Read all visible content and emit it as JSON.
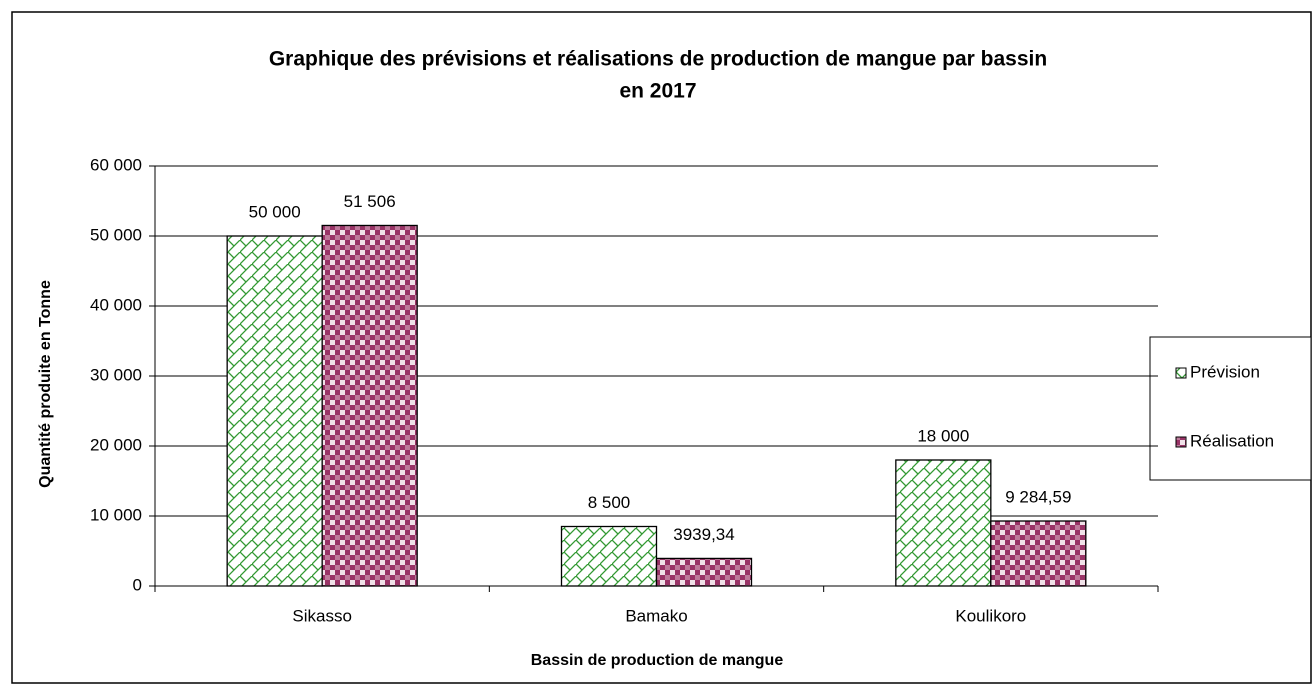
{
  "chart_data": {
    "type": "bar",
    "title": [
      "Graphique des prévisions et réalisations de production de mangue par bassin",
      "en 2017"
    ],
    "x_label": "Bassin de production de mangue",
    "y_label": "Quantité produite en Tonne",
    "categories": [
      "Sikasso",
      "Bamako",
      "Koulikoro"
    ],
    "series": [
      {
        "name": "Prévision",
        "color": "#339933",
        "pattern": "crosshatch",
        "values": [
          50000,
          8500,
          18000
        ],
        "value_labels": [
          "50 000",
          "8 500",
          "18 000"
        ]
      },
      {
        "name": "Réalisation",
        "color": "#993366",
        "pattern": "checker",
        "values": [
          51506,
          3939.34,
          9284.59
        ],
        "value_labels": [
          "51 506",
          "3939,34",
          "9 284,59"
        ]
      }
    ],
    "ylim": [
      0,
      60000
    ],
    "yticks": [
      0,
      {
        "value": 10000,
        "label": "10 000"
      },
      {
        "value": 20000,
        "label": "20 000"
      },
      {
        "value": 30000,
        "label": "30 000"
      },
      {
        "value": 40000,
        "label": "40 000"
      },
      {
        "value": 50000,
        "label": "50 000"
      },
      {
        "value": 60000,
        "label": "60 000"
      }
    ],
    "grid": true,
    "legend": "right"
  }
}
